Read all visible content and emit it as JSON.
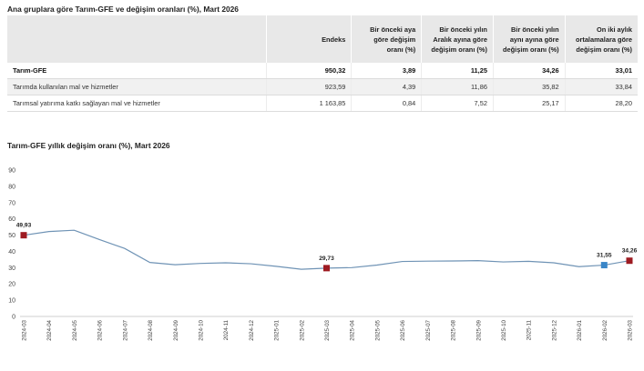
{
  "table": {
    "title": "Ana gruplara göre Tarım-GFE ve değişim oranları (%), Mart 2026",
    "headers": [
      "",
      "Endeks",
      "Bir önceki aya göre değişim oranı (%)",
      "Bir önceki yılın Aralık ayına göre değişim oranı (%)",
      "Bir önceki yılın aynı ayına göre değişim oranı (%)",
      "On iki aylık ortalamalara göre değişim oranı (%)"
    ],
    "rows": [
      [
        "Tarım-GFE",
        "950,32",
        "3,89",
        "11,25",
        "34,26",
        "33,01"
      ],
      [
        "Tarımda kullanılan mal ve hizmetler",
        "923,59",
        "4,39",
        "11,86",
        "35,82",
        "33,84"
      ],
      [
        "Tarımsal yatırıma katkı sağlayan mal ve hizmetler",
        "1 163,85",
        "0,84",
        "7,52",
        "25,17",
        "28,20"
      ]
    ]
  },
  "chart_data": {
    "type": "line",
    "title": "Tarım-GFE yıllık değişim oranı (%), Mart 2026",
    "x": [
      "2024-03",
      "2024-04",
      "2024-05",
      "2024-06",
      "2024-07",
      "2024-08",
      "2024-09",
      "2024-10",
      "2024-11",
      "2024-12",
      "2025-01",
      "2025-02",
      "2025-03",
      "2025-04",
      "2025-05",
      "2025-06",
      "2025-07",
      "2025-08",
      "2025-09",
      "2025-10",
      "2025-11",
      "2025-12",
      "2026-01",
      "2026-02",
      "2026-03"
    ],
    "series": [
      {
        "values": [
          49.93,
          52.2,
          53.0,
          47.3,
          41.8,
          33.2,
          31.8,
          32.6,
          33.0,
          32.4,
          30.8,
          29.0,
          29.7,
          30.0,
          31.6,
          33.8,
          34.0,
          34.1,
          34.3,
          33.5,
          33.9,
          33.0,
          30.6,
          31.55,
          34.26
        ]
      }
    ],
    "ylim": [
      0,
      90
    ],
    "yticks": [
      0,
      10,
      20,
      30,
      40,
      50,
      60,
      70,
      80,
      90
    ],
    "grid": false,
    "line_color": "#6f93b5",
    "markers": [
      {
        "index": 0,
        "label": "49,93",
        "color": "#9e1b22"
      },
      {
        "index": 12,
        "label": "29,73",
        "color": "#9e1b22"
      },
      {
        "index": 23,
        "label": "31,55",
        "color": "#3a86c8"
      },
      {
        "index": 24,
        "label": "34,26",
        "color": "#9e1b22"
      }
    ]
  }
}
